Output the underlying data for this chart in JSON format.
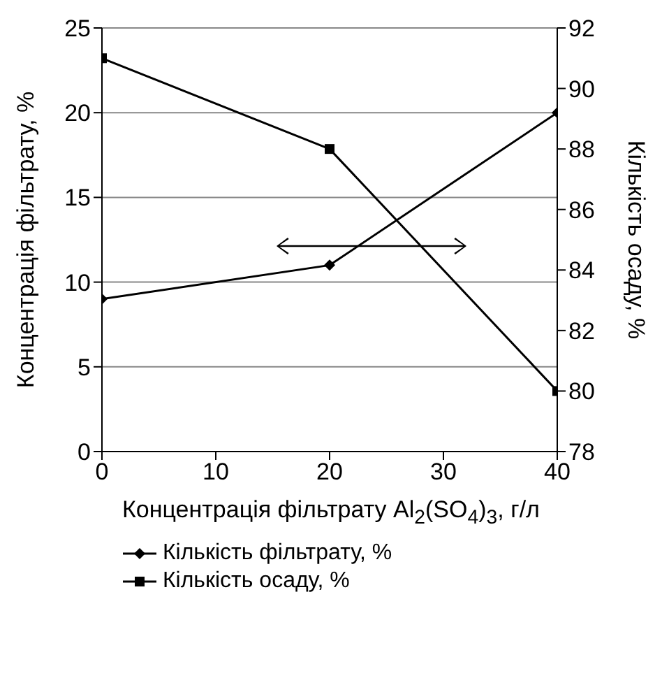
{
  "chart_data": {
    "type": "line",
    "xlabel": "Концентрація фільтрату Al$_{2}$(SO$_{4}$)$_{3}$, г/л",
    "ylabel": "Концентрація фільтрату, %",
    "y2label": "Кількість осаду, %",
    "x": [
      0,
      20,
      40
    ],
    "series": [
      {
        "name": "Кількість фільтрату, %",
        "color": "#000000",
        "values": [
          9,
          11,
          20
        ],
        "marker": "diamond"
      },
      {
        "name": "Кількість осаду, %",
        "color": "#000000",
        "values": [
          91,
          88,
          80
        ],
        "axis": "y2",
        "marker": "square"
      }
    ],
    "xlim": [
      0,
      40
    ],
    "xticks": [
      0,
      10,
      20,
      30,
      40
    ],
    "ylim": [
      0,
      25
    ],
    "yticks": [
      0,
      5,
      10,
      15,
      20,
      25
    ],
    "y2lim": [
      78,
      92
    ],
    "y2ticks": [
      78,
      80,
      82,
      84,
      86,
      88,
      90,
      92
    ],
    "grid": "y",
    "legend": "bottom",
    "line_style": "solid"
  }
}
